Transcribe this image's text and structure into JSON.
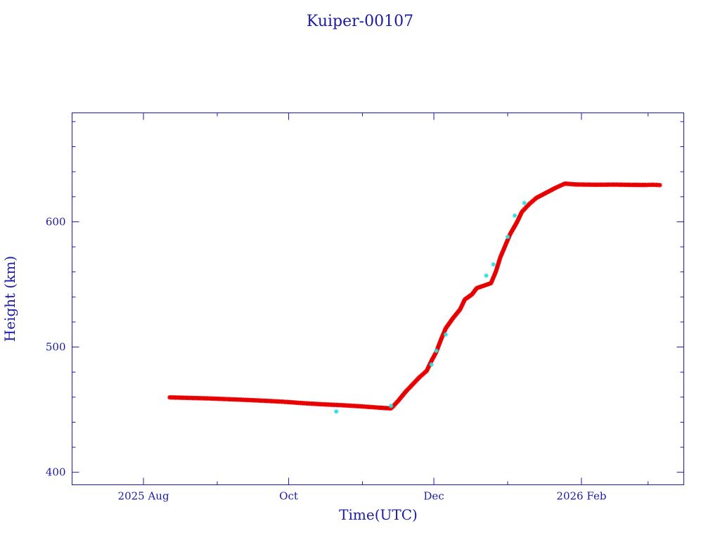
{
  "chart_data": {
    "type": "scatter",
    "title": "Kuiper-00107",
    "xlabel": "Time(UTC)",
    "ylabel": "Height (km)",
    "x_axis": {
      "type": "date",
      "range": [
        "2025-07-02",
        "2026-03-16"
      ],
      "major_ticks": [
        {
          "date": "2025-08-01",
          "label": "2025 Aug"
        },
        {
          "date": "2025-10-01",
          "label": "Oct"
        },
        {
          "date": "2025-12-01",
          "label": "Dec"
        },
        {
          "date": "2026-02-01",
          "label": "2026 Feb"
        }
      ],
      "minor_ticks": [
        "2025-09-01",
        "2025-11-01",
        "2026-01-01",
        "2026-03-01"
      ]
    },
    "y_axis": {
      "range": [
        390,
        687
      ],
      "major_ticks": [
        400,
        500,
        600
      ],
      "minor_step": 20
    },
    "grid": false,
    "colors": {
      "axis": "#1a1aa6",
      "series_main": "#e60000",
      "series_secondary": "#33dddd",
      "background": "#ffffff"
    },
    "series": [
      {
        "marker": "star",
        "color": "#e60000",
        "points": [
          [
            "2025-08-12",
            459.8
          ],
          [
            "2025-08-20",
            459.4
          ],
          [
            "2025-08-28",
            459.0
          ],
          [
            "2025-09-05",
            458.4
          ],
          [
            "2025-09-13",
            457.8
          ],
          [
            "2025-09-21",
            457.1
          ],
          [
            "2025-09-29",
            456.3
          ],
          [
            "2025-10-07",
            455.2
          ],
          [
            "2025-10-15",
            454.3
          ],
          [
            "2025-10-23",
            453.6
          ],
          [
            "2025-10-31",
            452.7
          ],
          [
            "2025-11-08",
            451.6
          ],
          [
            "2025-11-13",
            451.0
          ],
          [
            "2025-11-16",
            457.0
          ],
          [
            "2025-11-19",
            464.0
          ],
          [
            "2025-11-22",
            470.0
          ],
          [
            "2025-11-25",
            476.0
          ],
          [
            "2025-11-28",
            481.0
          ],
          [
            "2025-11-30",
            489.0
          ],
          [
            "2025-12-02",
            496.0
          ],
          [
            "2025-12-04",
            506.0
          ],
          [
            "2025-12-06",
            515.0
          ],
          [
            "2025-12-09",
            523.0
          ],
          [
            "2025-12-12",
            530.0
          ],
          [
            "2025-12-14",
            538.0
          ],
          [
            "2025-12-17",
            542.0
          ],
          [
            "2025-12-19",
            547.0
          ],
          [
            "2025-12-22",
            549.0
          ],
          [
            "2025-12-25",
            551.0
          ],
          [
            "2025-12-27",
            560.0
          ],
          [
            "2025-12-29",
            572.0
          ],
          [
            "2025-12-31",
            581.0
          ],
          [
            "2026-01-02",
            590.0
          ],
          [
            "2026-01-05",
            600.0
          ],
          [
            "2026-01-07",
            608.0
          ],
          [
            "2026-01-10",
            614.0
          ],
          [
            "2026-01-13",
            619.0
          ],
          [
            "2026-01-17",
            623.0
          ],
          [
            "2026-01-21",
            627.0
          ],
          [
            "2026-01-25",
            630.5
          ],
          [
            "2026-01-30",
            629.8
          ],
          [
            "2026-02-07",
            629.6
          ],
          [
            "2026-02-15",
            629.7
          ],
          [
            "2026-02-22",
            629.5
          ],
          [
            "2026-02-28",
            629.4
          ],
          [
            "2026-03-03",
            629.6
          ],
          [
            "2026-03-06",
            629.3
          ]
        ]
      },
      {
        "marker": "star",
        "color": "#33dddd",
        "points": [
          [
            "2025-10-21",
            448.5
          ],
          [
            "2025-11-13",
            453.0
          ],
          [
            "2025-11-30",
            486.0
          ],
          [
            "2025-12-02",
            497.0
          ],
          [
            "2025-12-06",
            510.0
          ],
          [
            "2025-12-23",
            557.0
          ],
          [
            "2025-12-26",
            566.0
          ],
          [
            "2026-01-01",
            588.0
          ],
          [
            "2026-01-04",
            605.0
          ],
          [
            "2026-01-08",
            615.0
          ]
        ]
      }
    ]
  }
}
